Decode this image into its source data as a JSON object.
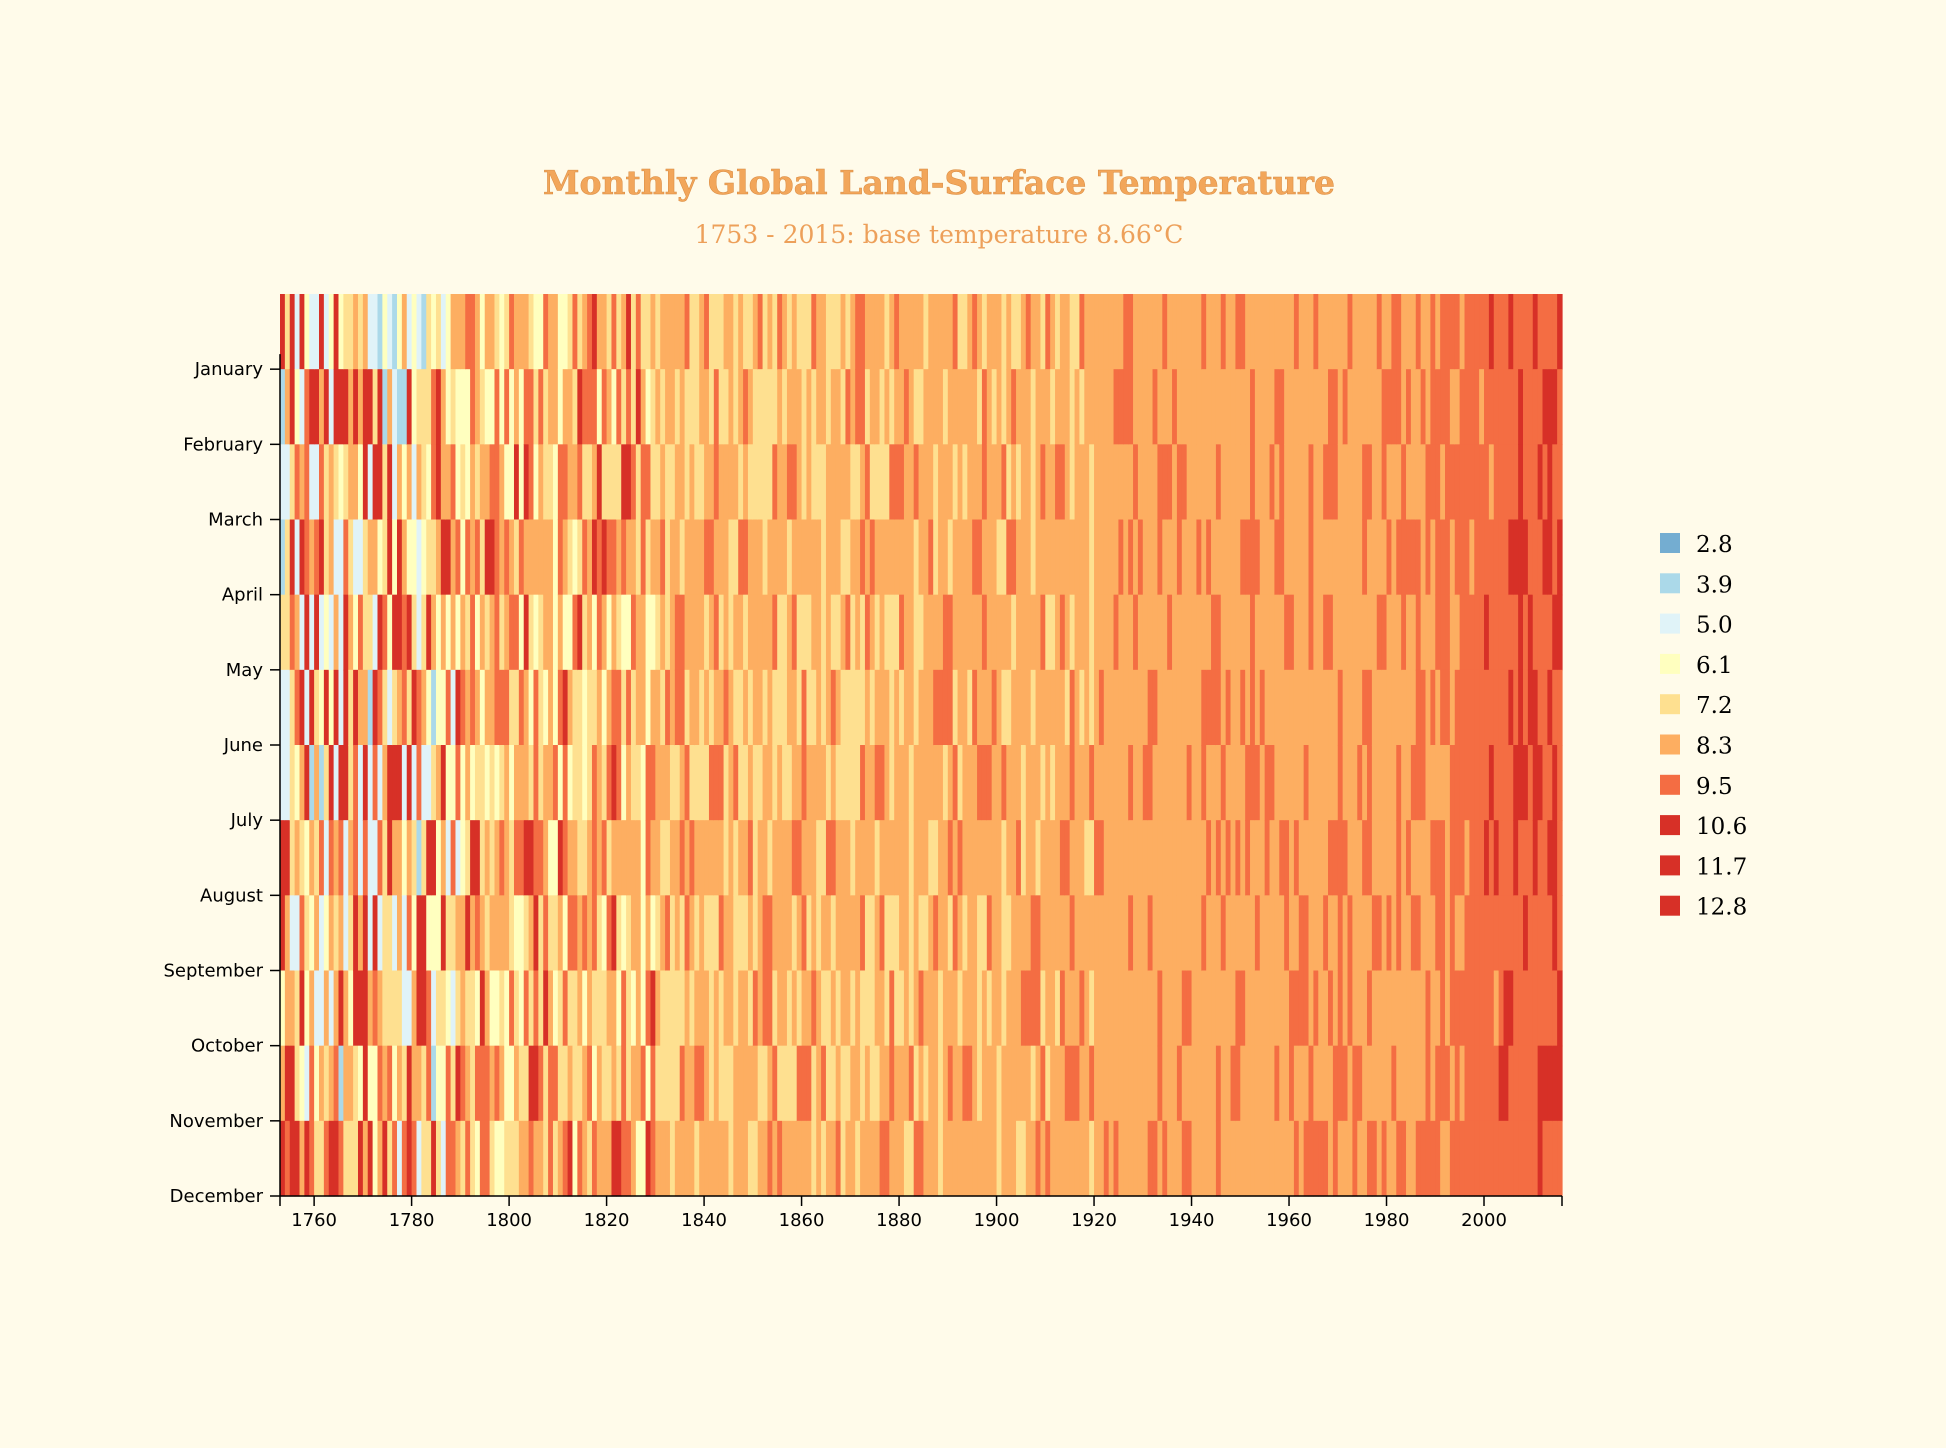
{
  "chart_data": {
    "type": "heatmap",
    "title": "Monthly Global Land-Surface Temperature",
    "subtitle": "1753 - 2015: base temperature 8.66°C",
    "base_temperature": 8.66,
    "x_range": [
      1753,
      2015
    ],
    "x_ticks": [
      "1760",
      "1780",
      "1800",
      "1820",
      "1840",
      "1860",
      "1880",
      "1900",
      "1920",
      "1940",
      "1960",
      "1980",
      "2000"
    ],
    "y_categories": [
      "January",
      "February",
      "March",
      "April",
      "May",
      "June",
      "July",
      "August",
      "September",
      "October",
      "November",
      "December"
    ],
    "legend": {
      "placement": "right",
      "items": [
        {
          "label": "2.8",
          "color": "#74add1"
        },
        {
          "label": "3.9",
          "color": "#abd9e9"
        },
        {
          "label": "5.0",
          "color": "#e0f3f8"
        },
        {
          "label": "6.1",
          "color": "#ffffbf"
        },
        {
          "label": "7.2",
          "color": "#fee090"
        },
        {
          "label": "8.3",
          "color": "#fdae61"
        },
        {
          "label": "9.5",
          "color": "#f46d43"
        },
        {
          "label": "10.6",
          "color": "#d73027"
        },
        {
          "label": "11.7",
          "color": "#d73027"
        },
        {
          "label": "12.8",
          "color": "#d73027"
        }
      ]
    }
  }
}
